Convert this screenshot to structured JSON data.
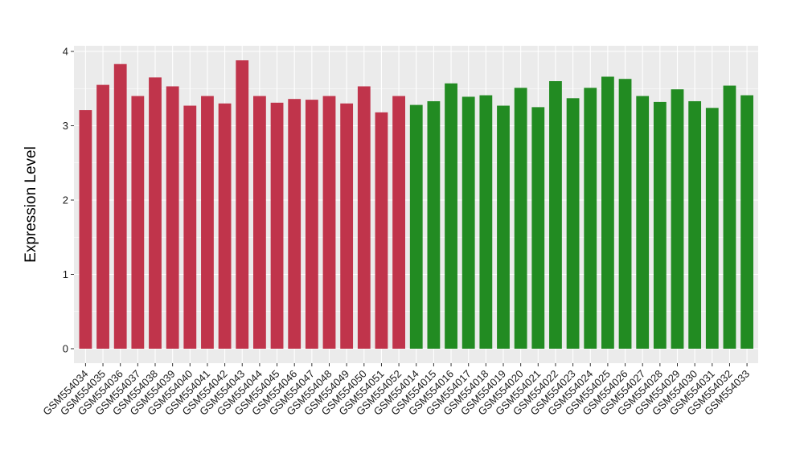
{
  "chart_data": {
    "type": "bar",
    "title": "",
    "xlabel": "",
    "ylabel": "Expression Level",
    "ylim": [
      0,
      4
    ],
    "yticks": [
      0,
      1,
      2,
      3,
      4
    ],
    "grid": true,
    "legend": "none",
    "colors": {
      "group_a": "#c0344b",
      "group_b": "#228b22",
      "panel_background": "#ebebeb",
      "gridline": "#ffffff"
    },
    "categories": [
      "GSM554034",
      "GSM554035",
      "GSM554036",
      "GSM554037",
      "GSM554038",
      "GSM554039",
      "GSM554040",
      "GSM554041",
      "GSM554042",
      "GSM554043",
      "GSM554044",
      "GSM554045",
      "GSM554046",
      "GSM554047",
      "GSM554048",
      "GSM554049",
      "GSM554050",
      "GSM554051",
      "GSM554052",
      "GSM554014",
      "GSM554015",
      "GSM554016",
      "GSM554017",
      "GSM554018",
      "GSM554019",
      "GSM554020",
      "GSM554021",
      "GSM554022",
      "GSM554023",
      "GSM554024",
      "GSM554025",
      "GSM554026",
      "GSM554027",
      "GSM554028",
      "GSM554029",
      "GSM554030",
      "GSM554031",
      "GSM554032",
      "GSM554033"
    ],
    "values": [
      3.21,
      3.55,
      3.83,
      3.4,
      3.65,
      3.53,
      3.27,
      3.4,
      3.3,
      3.88,
      3.4,
      3.31,
      3.36,
      3.35,
      3.4,
      3.3,
      3.53,
      3.18,
      3.4,
      3.28,
      3.33,
      3.57,
      3.39,
      3.41,
      3.27,
      3.51,
      3.25,
      3.6,
      3.37,
      3.51,
      3.66,
      3.63,
      3.4,
      3.32,
      3.49,
      3.33,
      3.24,
      3.54,
      3.41
    ],
    "groups": [
      "group_a",
      "group_a",
      "group_a",
      "group_a",
      "group_a",
      "group_a",
      "group_a",
      "group_a",
      "group_a",
      "group_a",
      "group_a",
      "group_a",
      "group_a",
      "group_a",
      "group_a",
      "group_a",
      "group_a",
      "group_a",
      "group_a",
      "group_b",
      "group_b",
      "group_b",
      "group_b",
      "group_b",
      "group_b",
      "group_b",
      "group_b",
      "group_b",
      "group_b",
      "group_b",
      "group_b",
      "group_b",
      "group_b",
      "group_b",
      "group_b",
      "group_b",
      "group_b",
      "group_b",
      "group_b"
    ]
  }
}
